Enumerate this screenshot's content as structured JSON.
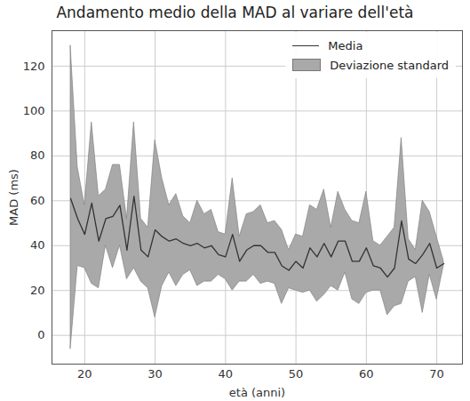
{
  "chart_data": {
    "type": "line",
    "title": "Andamento medio della MAD al variare dell'età",
    "x_label": "età (anni)",
    "y_label": "MAD (ms)",
    "x": [
      18,
      19,
      20,
      21,
      22,
      23,
      24,
      25,
      26,
      27,
      28,
      29,
      30,
      31,
      32,
      33,
      34,
      35,
      36,
      37,
      38,
      39,
      40,
      41,
      42,
      43,
      44,
      45,
      46,
      47,
      48,
      49,
      50,
      51,
      52,
      53,
      54,
      55,
      56,
      57,
      58,
      59,
      60,
      61,
      62,
      63,
      64,
      65,
      66,
      67,
      68,
      69,
      70,
      71
    ],
    "series": [
      {
        "name": "Media",
        "type": "line",
        "color": "#333333",
        "values": [
          61,
          52,
          45,
          59,
          42,
          52,
          53,
          58,
          38,
          62,
          38,
          35,
          47,
          44,
          42,
          43,
          41,
          40,
          41,
          39,
          40,
          36,
          35,
          45,
          33,
          38,
          40,
          40,
          37,
          37,
          31,
          29,
          33,
          30,
          39,
          35,
          41,
          35,
          42,
          42,
          33,
          33,
          39,
          31,
          30,
          26,
          30,
          51,
          34,
          32,
          36,
          41,
          30,
          32
        ]
      },
      {
        "name": "Deviazione standard",
        "type": "area",
        "color": "#a9a9a9",
        "lower": [
          -6,
          31,
          30,
          23,
          21,
          40,
          30,
          40,
          25,
          30,
          24,
          21,
          8,
          22,
          28,
          22,
          27,
          29,
          22,
          24,
          24,
          27,
          25,
          20,
          24,
          24,
          27,
          23,
          24,
          23,
          14,
          21,
          20,
          19,
          20,
          15,
          18,
          22,
          20,
          28,
          16,
          14,
          19,
          20,
          20,
          9,
          13,
          14,
          24,
          26,
          10,
          27,
          16,
          31
        ],
        "upper": [
          129,
          75,
          58,
          95,
          62,
          65,
          76,
          76,
          52,
          95,
          52,
          48,
          87,
          70,
          58,
          63,
          53,
          50,
          60,
          54,
          56,
          46,
          45,
          70,
          44,
          54,
          55,
          58,
          50,
          51,
          47,
          38,
          45,
          44,
          58,
          56,
          65,
          48,
          64,
          56,
          51,
          50,
          64,
          42,
          40,
          44,
          48,
          88,
          43,
          38,
          60,
          55,
          44,
          33
        ]
      }
    ],
    "xlim": [
      15.35,
      73.65
    ],
    "ylim": [
      -12.8,
      135.8
    ],
    "xticks": [
      20,
      30,
      40,
      50,
      60,
      70
    ],
    "yticks": [
      0,
      20,
      40,
      60,
      80,
      100,
      120
    ],
    "grid": true,
    "legend": "upper right"
  }
}
